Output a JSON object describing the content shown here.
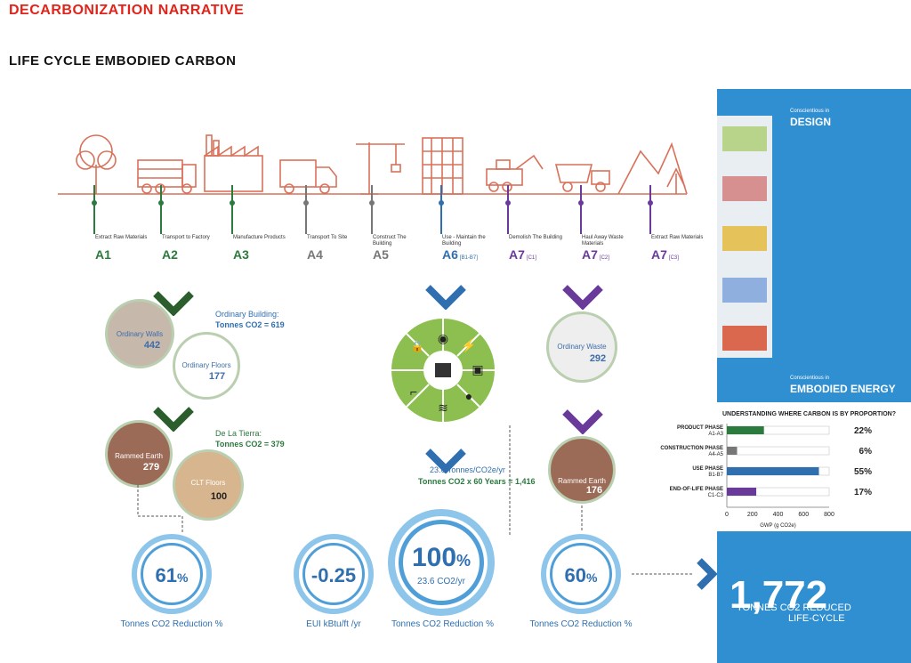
{
  "header": {
    "title": "DECARBONIZATION NARRATIVE",
    "subtitle": "LIFE CYCLE EMBODIED CARBON"
  },
  "lifecycle": [
    {
      "text": "Extract Raw Materials",
      "code": "A1",
      "suffix": "",
      "color": "#2b7a3e"
    },
    {
      "text": "Transport to Factory",
      "code": "A2",
      "suffix": "",
      "color": "#2b7a3e"
    },
    {
      "text": "Manufacture Products",
      "code": "A3",
      "suffix": "",
      "color": "#2b7a3e"
    },
    {
      "text": "Transport To Site",
      "code": "A4",
      "suffix": "",
      "color": "#777777"
    },
    {
      "text": "Construct The Building",
      "code": "A5",
      "suffix": "",
      "color": "#777777"
    },
    {
      "text": "Use - Maintain the Building",
      "code": "A6",
      "suffix": "[B1-B7]",
      "color": "#2f6fb0"
    },
    {
      "text": "Demolish The Building",
      "code": "A7",
      "suffix": "[C1]",
      "color": "#6a3a9a"
    },
    {
      "text": "Haul Away Waste Materials",
      "code": "A7",
      "suffix": "[C2]",
      "color": "#6a3a9a"
    },
    {
      "text": "Extract Raw Materials",
      "code": "A7",
      "suffix": "[C3]",
      "color": "#6a3a9a"
    }
  ],
  "ordinary": {
    "heading": "Ordinary Building:",
    "total": "Tonnes CO2 = 619",
    "walls_label": "Ordinary Walls",
    "walls_value": "442",
    "floors_label": "Ordinary Floors",
    "floors_value": "177"
  },
  "tierra": {
    "heading": "De La Tierra:",
    "total": "Tonnes CO2 = 379",
    "rammed_label": "Rammed Earth",
    "rammed_value": "279",
    "clt_label": "CLT Floors",
    "clt_value": "100"
  },
  "use": {
    "rate": "23.6 Tonnes/CO2e/yr",
    "total": "Tonnes CO2 x 60 Years = 1,416"
  },
  "waste": {
    "ord_label": "Ordinary Waste",
    "ord_value": "292",
    "re_label": "Rammed Earth",
    "re_value": "176"
  },
  "rings": [
    {
      "value": "61",
      "unit": "%",
      "sub": "",
      "caption": "Tonnes CO2 Reduction %"
    },
    {
      "value": "-0.25",
      "unit": "",
      "sub": "",
      "caption": "EUI kBtu/ft /yr"
    },
    {
      "value": "100",
      "unit": "%",
      "sub": "23.6 CO2/yr",
      "caption": "Tonnes CO2 Reduction %"
    },
    {
      "value": "60",
      "unit": "%",
      "sub": "",
      "caption": "Tonnes CO2 Reduction %"
    }
  ],
  "panel": {
    "design_small": "Conscientious in",
    "design_title": "DESIGN",
    "energy_small": "Conscientious in",
    "energy_title": "EMBODIED ENERGY",
    "chart_title": "UNDERSTANDING WHERE CARBON IS BY PROPORTION?",
    "big_number": "1,772",
    "big_caption1": "TONNES CO2 REDUCED",
    "big_caption2": "LIFE-CYCLE"
  },
  "chart_data": {
    "type": "bar",
    "categories": [
      "PRODUCT PHASE A1-A3",
      "CONSTRUCTION PHASE A4-A5",
      "USE PHASE B1-B7",
      "END-OF-LIFE PHASE C1-C3"
    ],
    "series": [
      {
        "values": [
          290,
          80,
          720,
          230
        ]
      }
    ],
    "percent_labels": [
      "22%",
      "6%",
      "55%",
      "17%"
    ],
    "bar_colors": [
      "#2b7a3e",
      "#777777",
      "#2f6fb0",
      "#6a3a9a"
    ],
    "xlabel": "GWP (g CO2e)",
    "xlim": [
      0,
      800
    ],
    "xticks": [
      "0",
      "200",
      "400",
      "600",
      "800"
    ]
  },
  "colors": {
    "accent_red": "#e2231a",
    "green": "#2b7a3e",
    "blue": "#2f6fb0",
    "purple": "#6a3a9a",
    "panel": "#2f8fd0"
  }
}
